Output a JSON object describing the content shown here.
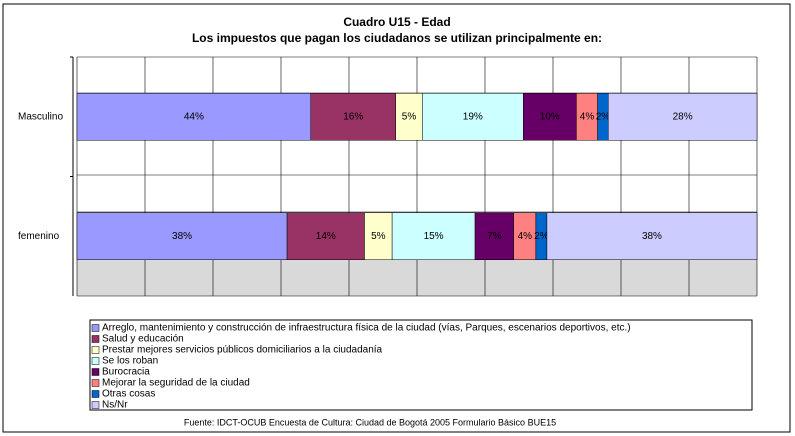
{
  "chart_data": {
    "type": "bar",
    "orientation": "horizontal",
    "stacked": "percent",
    "grid": true,
    "title": "Cuadro U15 - Edad",
    "subtitle": "Los impuestos que pagan los ciudadanos se utilizan principalmente en:",
    "categories": [
      "Masculino",
      "femenino"
    ],
    "series": [
      {
        "name": "Arreglo, mantenimiento y construcción de infraestructura física de la ciudad (vías, Parques, escenarios deportivos, etc.)",
        "color": "#9999ff",
        "values": [
          44,
          38
        ],
        "value_labels": [
          "44%",
          "38%"
        ]
      },
      {
        "name": "Salud y educación",
        "color": "#993366",
        "values": [
          16,
          14
        ],
        "value_labels": [
          "16%",
          "14%"
        ]
      },
      {
        "name": "Prestar mejores servicios públicos domiciliarios a la ciudadanía",
        "color": "#ffffcc",
        "values": [
          5,
          5
        ],
        "value_labels": [
          "5%",
          "5%"
        ]
      },
      {
        "name": "Se los roban",
        "color": "#ccffff",
        "values": [
          19,
          15
        ],
        "value_labels": [
          "19%",
          "15%"
        ]
      },
      {
        "name": "Burocracia",
        "color": "#660066",
        "values": [
          10,
          7
        ],
        "value_labels": [
          "10%",
          "7%"
        ]
      },
      {
        "name": "Mejorar la seguridad de la ciudad",
        "color": "#ff8080",
        "values": [
          4,
          4
        ],
        "value_labels": [
          "4%",
          "4%"
        ]
      },
      {
        "name": "Otras cosas",
        "color": "#0066cc",
        "values": [
          2,
          2
        ],
        "value_labels": [
          "2%",
          "2%"
        ]
      },
      {
        "name": "Ns/Nr",
        "color": "#ccccff",
        "values": [
          28,
          38
        ],
        "value_labels": [
          "28%",
          "38%"
        ]
      }
    ],
    "source": "Fuente: IDCT-OCUB Encuesta de Cultura: Ciudad de Bogotá 2005 Formulario Básico BUE15"
  }
}
